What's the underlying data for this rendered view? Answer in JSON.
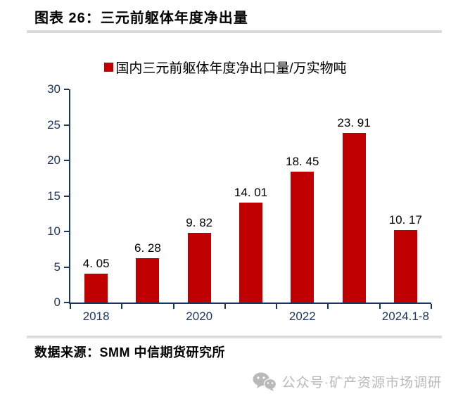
{
  "header": {
    "title": "图表 26：三元前躯体年度净出量"
  },
  "legend": {
    "label": "国内三元前躯体年度净出口量/万实物吨"
  },
  "chart_data": {
    "type": "bar",
    "categories": [
      "2018",
      "",
      "2020",
      "",
      "2022",
      "",
      "2024.1-8"
    ],
    "values": [
      4.05,
      6.28,
      9.82,
      14.01,
      18.45,
      23.91,
      10.17
    ],
    "value_labels": [
      "4. 05",
      "6. 28",
      "9. 82",
      "14. 01",
      "18. 45",
      "23. 91",
      "10. 17"
    ],
    "title": "国内三元前躯体年度净出口量/万实物吨",
    "xlabel": "",
    "ylabel": "",
    "y_ticks": [
      0,
      5,
      10,
      15,
      20,
      25,
      30
    ],
    "ylim": [
      0,
      30
    ],
    "grid": false,
    "legend_position": "top",
    "colors": {
      "bar": "#c00000",
      "axis": "#17375e",
      "tick_label": "#1f3864",
      "value_label": "#000000"
    }
  },
  "footer": {
    "source": "数据来源：SMM 中信期货研究所"
  },
  "watermark": {
    "icon": "wechat-icon",
    "text": "公众号·矿产资源市场调研",
    "color": "#b9b9b9"
  }
}
